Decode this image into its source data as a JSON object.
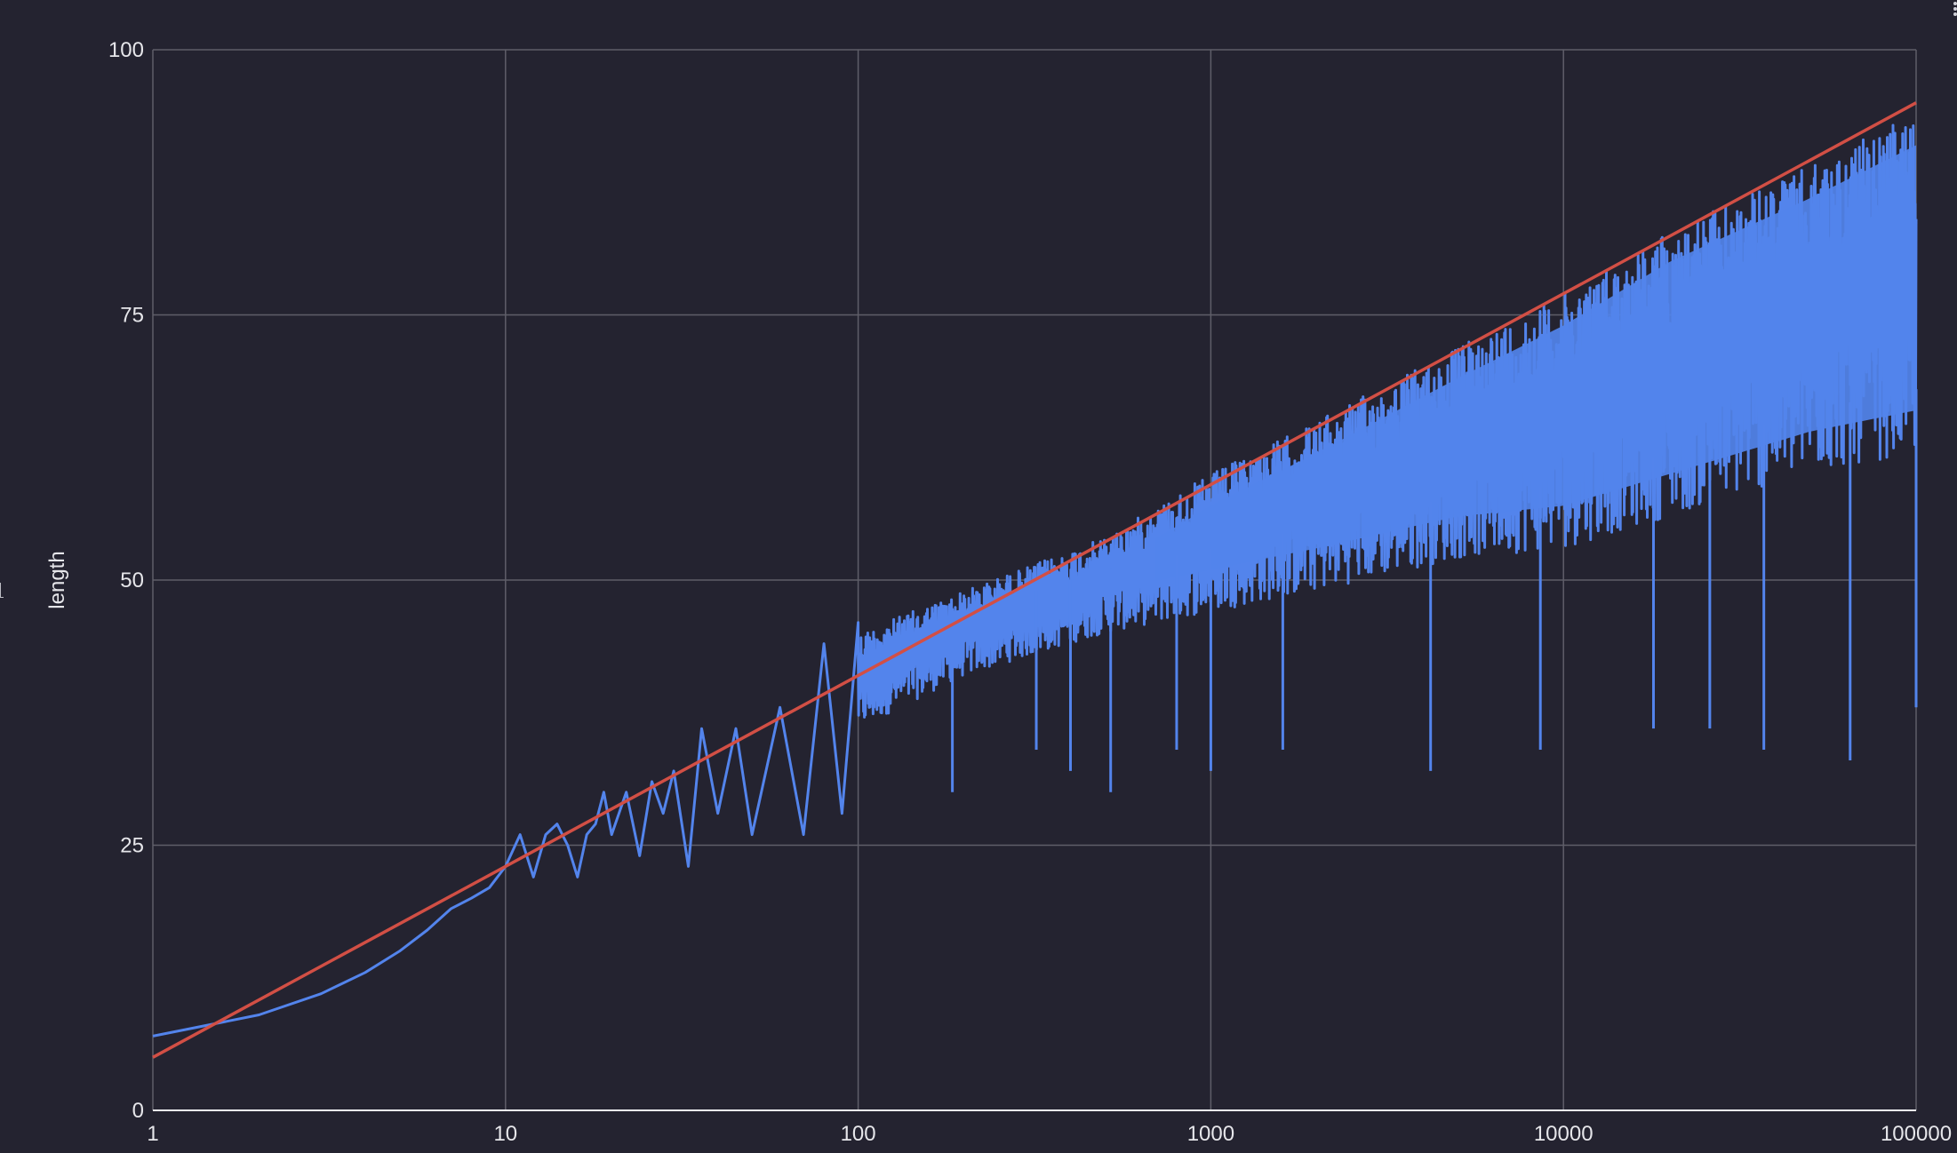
{
  "chart_data": {
    "type": "line",
    "title": "",
    "xlabel": "",
    "ylabel": "length",
    "xscale": "log",
    "xlim": [
      1,
      100000
    ],
    "ylim": [
      0,
      100
    ],
    "x_ticks": [
      "1",
      "10",
      "100",
      "1000",
      "10000",
      "100000"
    ],
    "y_ticks": [
      "0",
      "25",
      "50",
      "75",
      "100"
    ],
    "grid": true,
    "legend": "none",
    "series": [
      {
        "color": "#5384ec",
        "style": "noisy line; dense band at high x",
        "x": [
          1,
          2,
          3,
          4,
          5,
          6,
          7,
          8,
          9,
          10,
          11,
          12,
          13,
          14,
          15,
          16,
          17,
          18,
          19,
          20,
          22,
          24,
          26,
          28,
          30,
          33,
          36,
          40,
          45,
          50,
          60,
          70,
          80,
          90,
          100,
          150,
          200,
          300,
          500,
          700,
          1000,
          2000,
          5000,
          10000,
          20000,
          50000,
          100000
        ],
        "y": [
          7,
          9,
          11,
          13,
          15,
          17,
          19,
          20,
          21,
          23,
          26,
          22,
          26,
          27,
          25,
          22,
          26,
          27,
          30,
          26,
          30,
          24,
          31,
          28,
          32,
          23,
          36,
          28,
          36,
          26,
          38,
          26,
          44,
          28,
          46,
          28,
          50,
          30,
          56,
          34,
          61,
          64,
          72,
          78,
          84,
          90,
          95
        ],
        "band_upper": [
          {
            "x": 100,
            "y": 45
          },
          {
            "x": 200,
            "y": 49
          },
          {
            "x": 500,
            "y": 54
          },
          {
            "x": 1000,
            "y": 60
          },
          {
            "x": 2000,
            "y": 65
          },
          {
            "x": 5000,
            "y": 72
          },
          {
            "x": 10000,
            "y": 77
          },
          {
            "x": 20000,
            "y": 83
          },
          {
            "x": 50000,
            "y": 89
          },
          {
            "x": 100000,
            "y": 94
          }
        ],
        "band_lower": [
          {
            "x": 100,
            "y": 36
          },
          {
            "x": 200,
            "y": 41
          },
          {
            "x": 500,
            "y": 45
          },
          {
            "x": 1000,
            "y": 47
          },
          {
            "x": 2000,
            "y": 49
          },
          {
            "x": 5000,
            "y": 52
          },
          {
            "x": 10000,
            "y": 53
          },
          {
            "x": 20000,
            "y": 56
          },
          {
            "x": 50000,
            "y": 60
          },
          {
            "x": 100000,
            "y": 62
          }
        ],
        "spikes_low": [
          {
            "x": 185,
            "y": 30
          },
          {
            "x": 320,
            "y": 34
          },
          {
            "x": 400,
            "y": 32
          },
          {
            "x": 520,
            "y": 30
          },
          {
            "x": 800,
            "y": 34
          },
          {
            "x": 1000,
            "y": 32
          },
          {
            "x": 1600,
            "y": 34
          },
          {
            "x": 4200,
            "y": 32
          },
          {
            "x": 8600,
            "y": 34
          },
          {
            "x": 18000,
            "y": 36
          },
          {
            "x": 26000,
            "y": 36
          },
          {
            "x": 37000,
            "y": 34
          },
          {
            "x": 65000,
            "y": 33
          },
          {
            "x": 100000,
            "y": 38
          }
        ]
      },
      {
        "color": "#d24f45",
        "style": "trend line",
        "x": [
          1,
          100000
        ],
        "y": [
          5,
          95
        ]
      }
    ]
  }
}
